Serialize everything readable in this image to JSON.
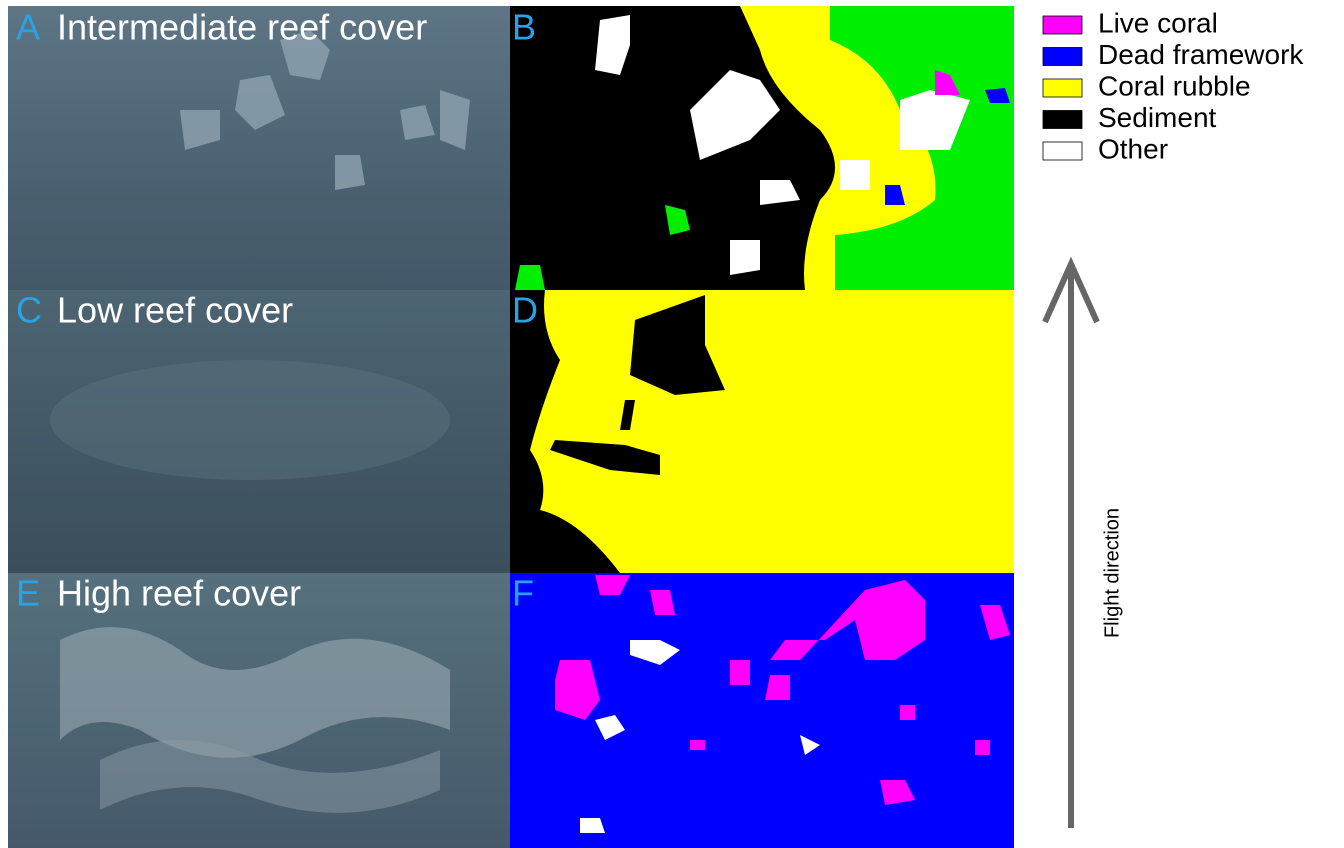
{
  "panels": [
    {
      "letter": "A",
      "title": "Intermediate reef cover"
    },
    {
      "letter": "B"
    },
    {
      "letter": "C",
      "title": "Low reef cover"
    },
    {
      "letter": "D"
    },
    {
      "letter": "E",
      "title": "High reef cover"
    },
    {
      "letter": "F"
    }
  ],
  "legend": [
    {
      "label": "Live coral",
      "color": "#ff00ff"
    },
    {
      "label": "Dead framework",
      "color": "#0000ff"
    },
    {
      "label": "Coral rubble",
      "color": "#ffff00"
    },
    {
      "label": "Sediment",
      "color": "#000000"
    },
    {
      "label": "Other",
      "color": "#ffffff"
    }
  ],
  "arrow_label": "Flight direction"
}
